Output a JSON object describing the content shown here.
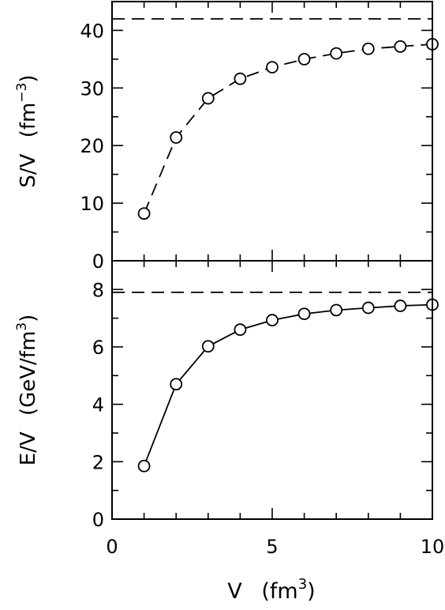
{
  "chart_data": [
    {
      "type": "scatter",
      "panel": "top",
      "ylabel_main": "S/V",
      "ylabel_unit_base": "(fm",
      "ylabel_unit_sup": "−3",
      "ylabel_unit_end": ")",
      "xlim": [
        0,
        10
      ],
      "ylim": [
        0,
        45
      ],
      "yticks": [
        0,
        10,
        20,
        30,
        40
      ],
      "x": [
        1,
        2,
        3,
        4,
        5,
        6,
        7,
        8,
        9,
        10
      ],
      "series": [
        {
          "values": [
            8.2,
            21.4,
            28.2,
            31.6,
            33.6,
            35.0,
            36.0,
            36.8,
            37.2,
            37.6
          ],
          "line_style": "dashed",
          "marker": "open-circle"
        }
      ],
      "reference_line": {
        "y": 42,
        "style": "dashed"
      }
    },
    {
      "type": "scatter",
      "panel": "bottom",
      "ylabel_main": "E/V",
      "ylabel_unit_base": "(GeV/fm",
      "ylabel_unit_sup": "3",
      "ylabel_unit_end": ")",
      "xlabel_main": "V",
      "xlabel_unit_base": "(fm",
      "xlabel_unit_sup": "3",
      "xlabel_unit_end": ")",
      "xlim": [
        0,
        10
      ],
      "ylim": [
        0,
        9
      ],
      "yticks": [
        0,
        2,
        4,
        6,
        8
      ],
      "xticks": [
        0,
        5,
        10
      ],
      "x": [
        1,
        2,
        3,
        4,
        5,
        6,
        7,
        8,
        9,
        10
      ],
      "series": [
        {
          "values": [
            1.85,
            4.7,
            6.02,
            6.6,
            6.93,
            7.15,
            7.28,
            7.36,
            7.43,
            7.47
          ],
          "line_style": "solid",
          "marker": "open-circle"
        }
      ],
      "reference_line": {
        "y": 7.9,
        "style": "dashed"
      }
    }
  ]
}
